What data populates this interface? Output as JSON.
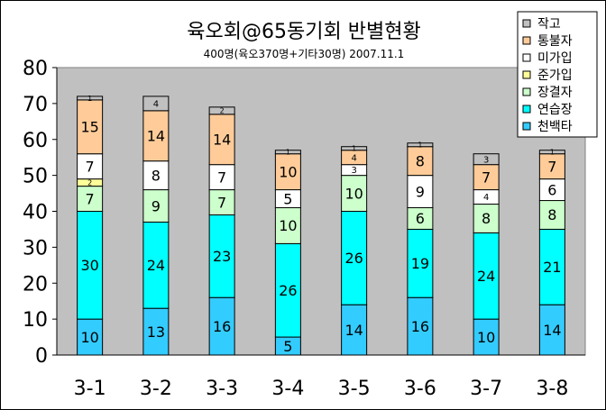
{
  "chart_data": {
    "type": "bar",
    "stacked": true,
    "title": "육오회@65동기회 반별현황",
    "subtitle": "400명(육오370명+기타30명) 2007.11.1",
    "xlabel": "",
    "ylabel": "",
    "ylim": [
      0,
      80
    ],
    "yticks": [
      0,
      10,
      20,
      30,
      40,
      50,
      60,
      70,
      80
    ],
    "grid": false,
    "legend_position": "top-right",
    "categories": [
      "3-1",
      "3-2",
      "3-3",
      "3-4",
      "3-5",
      "3-6",
      "3-7",
      "3-8"
    ],
    "series": [
      {
        "name": "천백타",
        "color": "#33CCFF",
        "values": [
          10,
          13,
          16,
          5,
          14,
          16,
          10,
          14
        ]
      },
      {
        "name": "연습장",
        "color": "#00FFFF",
        "values": [
          30,
          24,
          23,
          26,
          26,
          19,
          24,
          21
        ]
      },
      {
        "name": "장결자",
        "color": "#CCFFCC",
        "values": [
          7,
          9,
          7,
          10,
          10,
          6,
          8,
          8
        ]
      },
      {
        "name": "준가입",
        "color": "#FFFF99",
        "values": [
          2,
          0,
          0,
          0,
          0,
          0,
          0,
          0
        ]
      },
      {
        "name": "미가입",
        "color": "#FFFFFF",
        "values": [
          7,
          8,
          7,
          5,
          3,
          9,
          4,
          6
        ]
      },
      {
        "name": "통불자",
        "color": "#FFCC99",
        "values": [
          15,
          14,
          14,
          10,
          4,
          8,
          7,
          7
        ]
      },
      {
        "name": "작고",
        "color": "#C0C0C0",
        "values": [
          1,
          4,
          2,
          1,
          1,
          1,
          3,
          1
        ]
      }
    ],
    "plot_background": "#C0C0C0"
  }
}
